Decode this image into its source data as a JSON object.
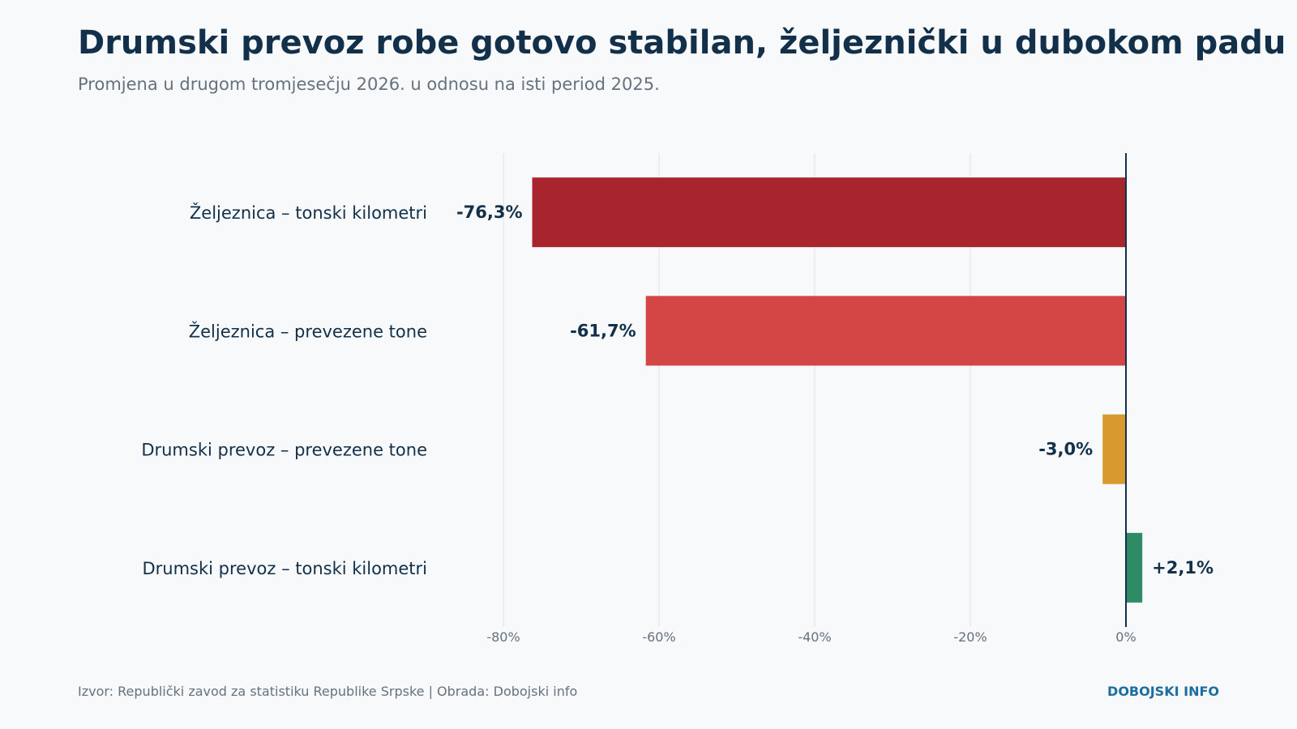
{
  "header": {
    "title": "Drumski prevoz robe gotovo stabilan, željeznički u dubokom padu",
    "subtitle": "Promjena u drugom tromjesečju 2026. u odnosu na isti period 2025."
  },
  "footer": {
    "source": "Izvor: Republički zavod za statistiku Republike Srpske | Obrada: Dobojski info",
    "brand": "DOBOJSKI INFO"
  },
  "chart_data": {
    "type": "bar",
    "orientation": "horizontal",
    "categories": [
      "Željeznica – tonski kilometri",
      "Željeznica – prevezene tone",
      "Drumski prevoz – prevezene tone",
      "Drumski prevoz – tonski kilometri"
    ],
    "values": [
      -76.3,
      -61.7,
      -3.0,
      2.1
    ],
    "value_labels": [
      "-76,3%",
      "-61,7%",
      "-3,0%",
      "+2,1%"
    ],
    "colors": [
      "#a8252d",
      "#d44545",
      "#d89a2e",
      "#2e8b65"
    ],
    "xlim": [
      -80,
      0
    ],
    "xticks": [
      -80,
      -60,
      -40,
      -20,
      0
    ],
    "xtick_labels": [
      "-80%",
      "-60%",
      "-40%",
      "-20%",
      "0%"
    ],
    "grid": "vertical",
    "legend": "none"
  }
}
